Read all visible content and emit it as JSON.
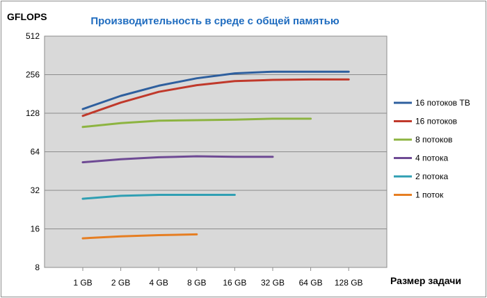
{
  "chart_data": {
    "type": "line",
    "title": "Производительность в среде с общей памятью",
    "ylabel": "GFLOPS",
    "xlabel": "Размер задачи",
    "y_scale": "log2",
    "ylim": [
      8,
      512
    ],
    "y_ticks": [
      "8",
      "16",
      "32",
      "64",
      "128",
      "256",
      "512"
    ],
    "categories": [
      "1 GB",
      "2 GB",
      "4 GB",
      "8 GB",
      "16 GB",
      "32 GB",
      "64 GB",
      "128 GB"
    ],
    "grid": "horizontal",
    "legend_position": "right",
    "background": "#d9d9d9",
    "series": [
      {
        "name": "16 потоков ТВ",
        "color": "#2e5f9e",
        "values": [
          138,
          175,
          210,
          240,
          262,
          270,
          270,
          270
        ]
      },
      {
        "name": "16 потоков",
        "color": "#c0392b",
        "values": [
          122,
          155,
          188,
          212,
          228,
          233,
          235,
          235
        ]
      },
      {
        "name": "8 потоков",
        "color": "#8db441",
        "values": [
          100,
          107,
          112,
          113,
          114,
          116,
          116,
          null
        ]
      },
      {
        "name": "4 потока",
        "color": "#6e4a94",
        "values": [
          53,
          56,
          58,
          59,
          58.5,
          58.5,
          null,
          null
        ]
      },
      {
        "name": "2 потока",
        "color": "#2f9fb3",
        "values": [
          27.5,
          29,
          29.5,
          29.5,
          29.5,
          null,
          null,
          null
        ]
      },
      {
        "name": "1 поток",
        "color": "#e67e22",
        "values": [
          13.5,
          14,
          14.3,
          14.5,
          null,
          null,
          null,
          null
        ]
      }
    ]
  }
}
